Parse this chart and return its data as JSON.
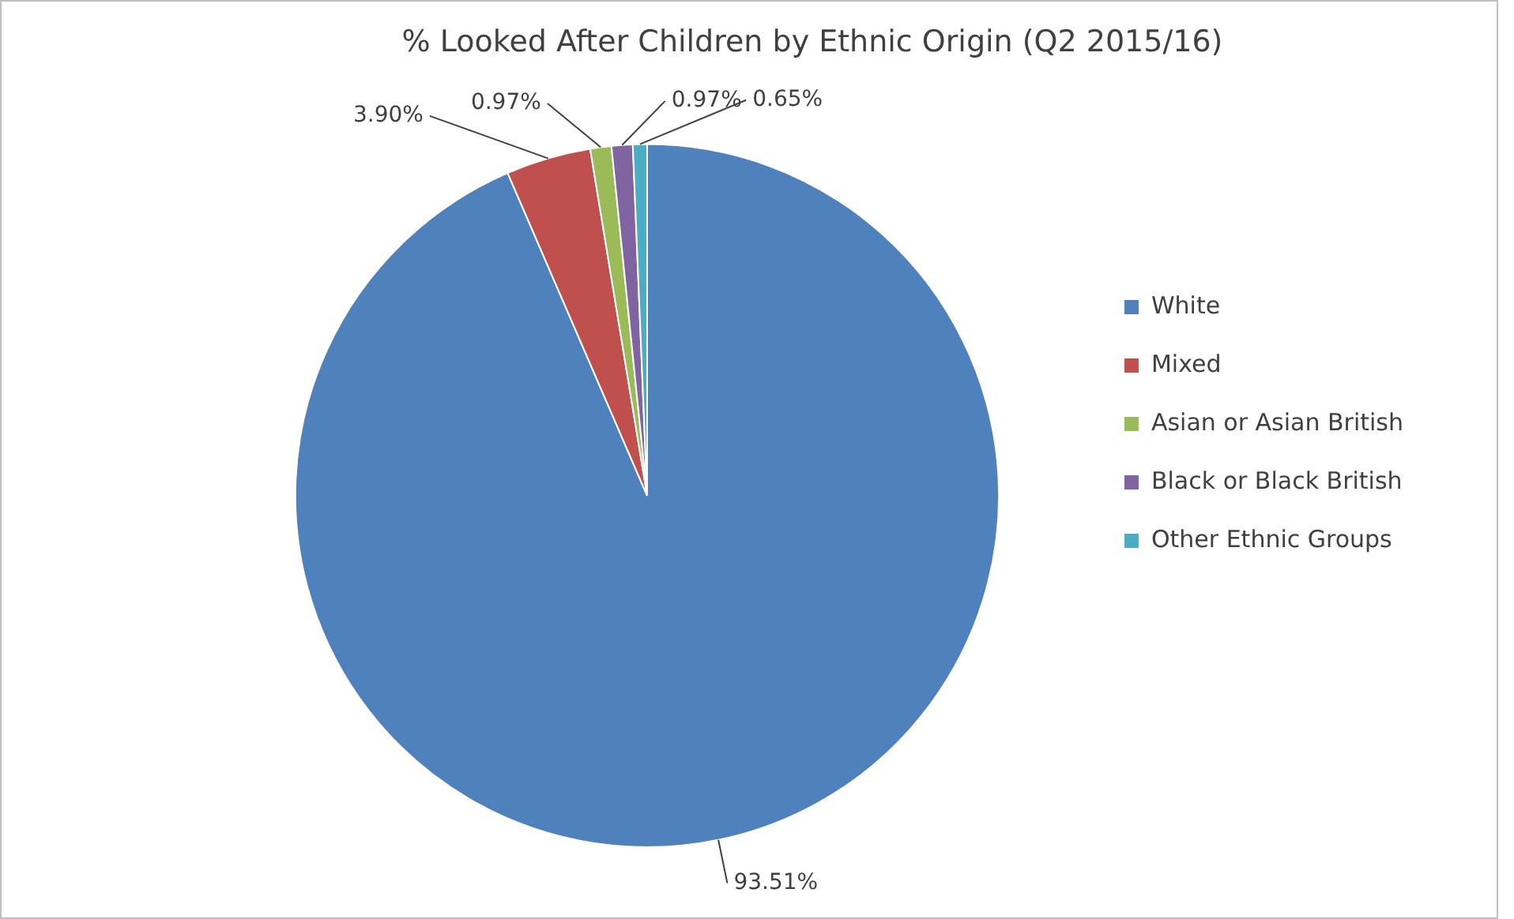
{
  "chart_data": {
    "type": "pie",
    "title": "% Looked After Children by Ethnic Origin (Q2 2015/16)",
    "categories": [
      "White",
      "Mixed",
      "Asian or Asian British",
      "Black or Black British",
      "Other Ethnic Groups"
    ],
    "values": [
      93.51,
      3.9,
      0.97,
      0.97,
      0.65
    ],
    "value_labels": [
      "93.51%",
      "3.90%",
      "0.97%",
      "0.97%",
      "0.65%"
    ],
    "colors": [
      "#4f81bd",
      "#c0504d",
      "#9bbb59",
      "#8064a2",
      "#4bacc6"
    ],
    "legend": "right"
  }
}
